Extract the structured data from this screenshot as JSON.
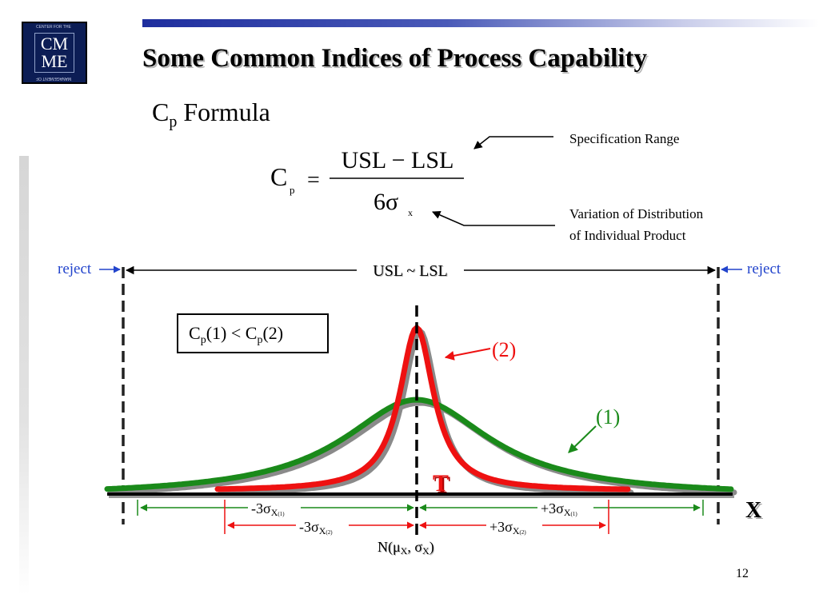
{
  "logo": {
    "line1": "CM",
    "line2": "ME",
    "ring_top": "CENTER FOR THE",
    "ring_bottom": "MANAGEMENT OF"
  },
  "slide": {
    "title": "Some Common Indices of Process Capability",
    "subtitle_main": "C",
    "subtitle_sub": "p",
    "subtitle_rest": " Formula",
    "page_number": "12"
  },
  "formula": {
    "lhs": "C",
    "lhs_sub": "p",
    "equals": "=",
    "numerator": "USL − LSL",
    "denominator": "6σ",
    "denominator_sub": "x"
  },
  "annotations": {
    "spec_range": "Specification Range",
    "variation_line1": "Variation of Distribution",
    "variation_line2": "of Individual Product"
  },
  "diagram": {
    "reject_left": "reject",
    "reject_right": "reject",
    "usl_lsl": "USL ~ LSL",
    "compare_box": {
      "p1": "C",
      "s1": "p",
      "t1": "(1) < ",
      "p2": "C",
      "s2": "p",
      "t2": "(2)"
    },
    "curve_2_label": "(2)",
    "curve_1_label": "(1)",
    "target_label": "T",
    "axis_label": "X",
    "minus_3sigma_1": {
      "text": "-3σ",
      "sub": "X",
      "subsub": "(1)"
    },
    "plus_3sigma_1": {
      "text": "+3σ",
      "sub": "X",
      "subsub": "(1)"
    },
    "minus_3sigma_2": {
      "text": "-3σ",
      "sub": "X",
      "subsub": "(2)"
    },
    "plus_3sigma_2": {
      "text": "+3σ",
      "sub": "X",
      "subsub": "(2)"
    },
    "dist_label": {
      "n": "N(μ",
      "x1": "X",
      "mid": ", σ",
      "x2": "X",
      "end": ")"
    },
    "colors": {
      "curve_1": "#1a8a1a",
      "curve_2": "#ee1111",
      "reject": "#2244cc",
      "shadow": "#8a8a8a",
      "axis": "#000000"
    }
  }
}
